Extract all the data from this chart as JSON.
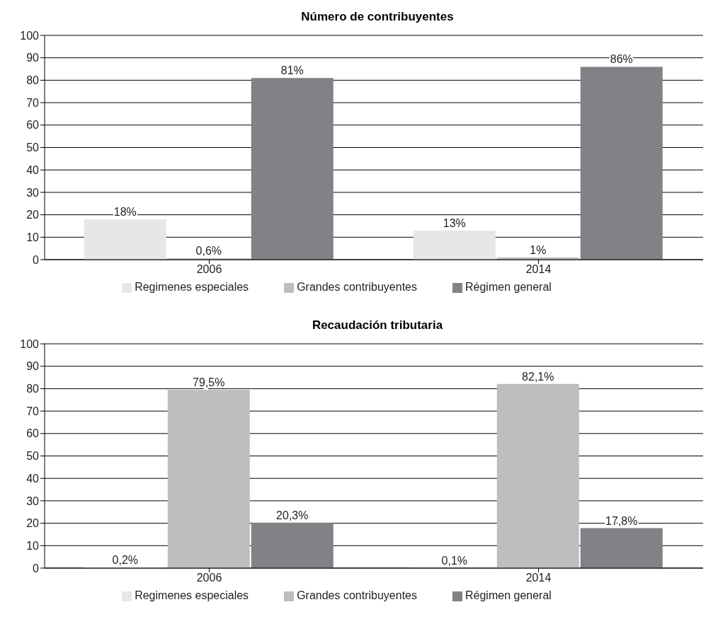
{
  "chart_data": [
    {
      "type": "bar",
      "title": "Número de contribuyentes",
      "categories": [
        "2006",
        "2014"
      ],
      "series": [
        {
          "name": "Regimenes especiales",
          "color": "#e6e7e8",
          "values": [
            18,
            13
          ],
          "value_labels": [
            "18%",
            "13%"
          ]
        },
        {
          "name": "Grandes contribuyentes",
          "color": "#bcbec0",
          "values": [
            0.6,
            1
          ],
          "value_labels": [
            "0,6%",
            "1%"
          ]
        },
        {
          "name": "Régimen general",
          "color": "#808285",
          "values": [
            81,
            86
          ],
          "value_labels": [
            "81%",
            "86%"
          ]
        }
      ],
      "ylim": [
        0,
        100
      ],
      "yticks": [
        0,
        10,
        20,
        30,
        40,
        50,
        60,
        70,
        80,
        90,
        100
      ],
      "grid": "y",
      "legend": "bottom"
    },
    {
      "type": "bar",
      "title": "Recaudación tributaria",
      "categories": [
        "2006",
        "2014"
      ],
      "series": [
        {
          "name": "Regimenes especiales",
          "color": "#e6e7e8",
          "values": [
            0.2,
            0.1
          ],
          "value_labels": [
            "0,2%",
            "0,1%"
          ]
        },
        {
          "name": "Grandes contribuyentes",
          "color": "#bcbec0",
          "values": [
            79.5,
            82.1
          ],
          "value_labels": [
            "79,5%",
            "82,1%"
          ]
        },
        {
          "name": "Régimen general",
          "color": "#808285",
          "values": [
            20.3,
            17.8
          ],
          "value_labels": [
            "20,3%",
            "17,8%"
          ]
        }
      ],
      "ylim": [
        0,
        100
      ],
      "yticks": [
        0,
        10,
        20,
        30,
        40,
        50,
        60,
        70,
        80,
        90,
        100
      ],
      "grid": "y",
      "legend": "bottom"
    }
  ]
}
